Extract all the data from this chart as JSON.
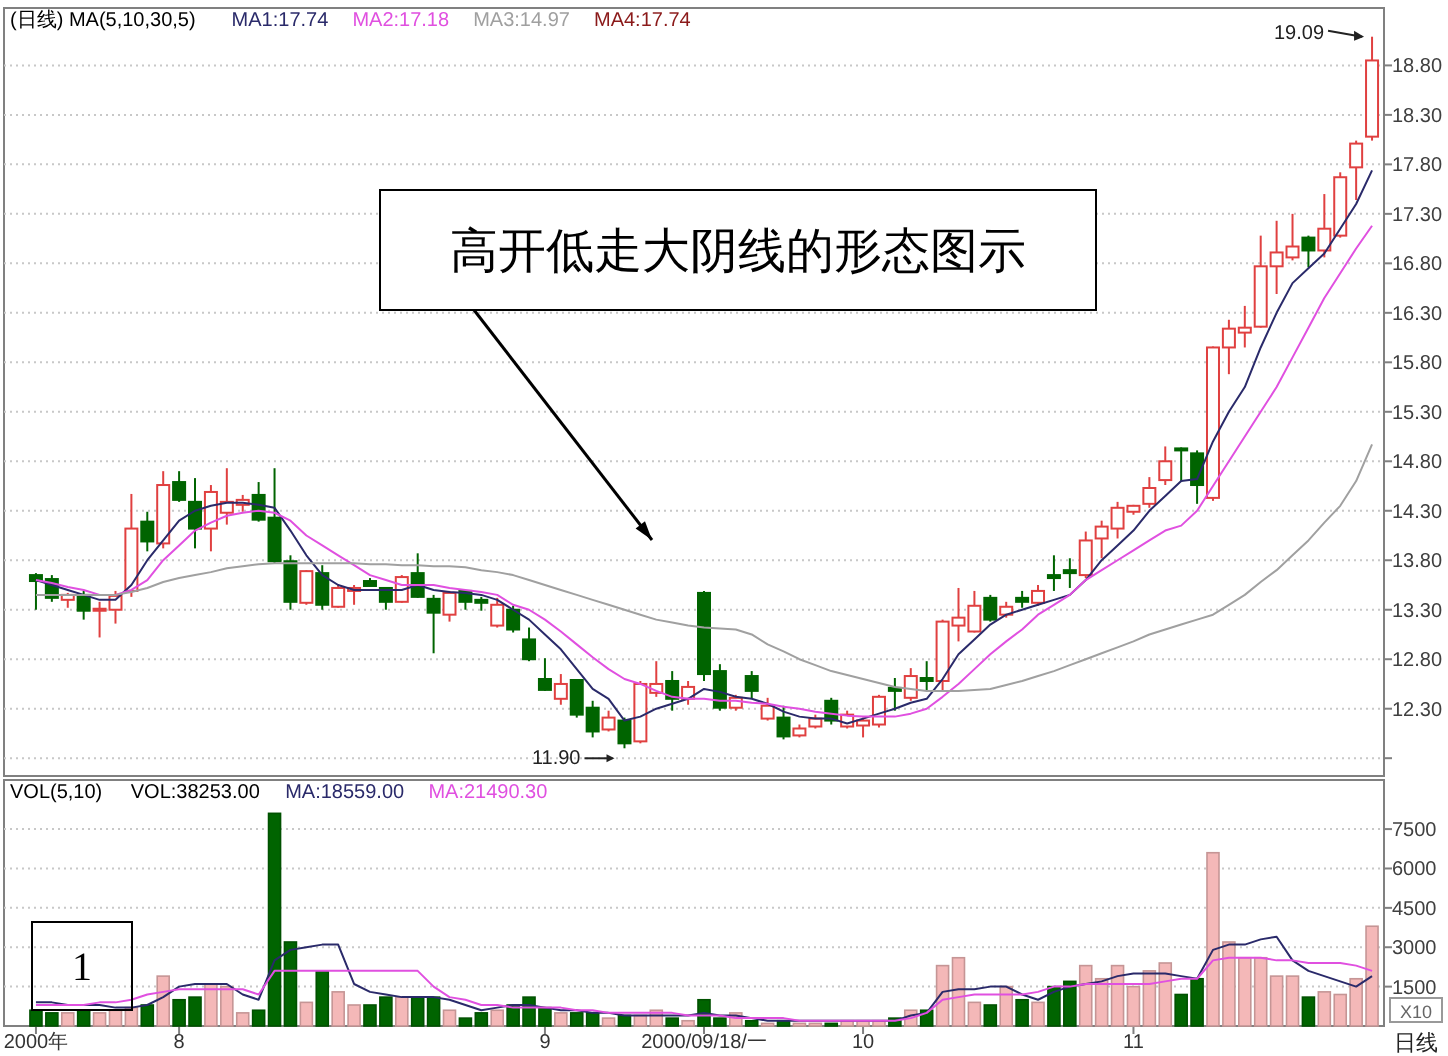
{
  "chart_data": [
    {
      "type": "candlestick",
      "title": "(日线) MA(5,10,30,5)",
      "categories": [
        null,
        null,
        null,
        null,
        null,
        null,
        null,
        null,
        null,
        null,
        null,
        null,
        null,
        null,
        null,
        null,
        null,
        null,
        null,
        null,
        null,
        null,
        null,
        null,
        null,
        null,
        null,
        null,
        null,
        null,
        null,
        null,
        null,
        null,
        null,
        null,
        null,
        null,
        null,
        null,
        null,
        null,
        null,
        null,
        null,
        null,
        null,
        null,
        null,
        null,
        null,
        null,
        null,
        null,
        null,
        null,
        null,
        null,
        null,
        null,
        null,
        null,
        null,
        null,
        null,
        null,
        null,
        null,
        null,
        null,
        null,
        null,
        null,
        null,
        null,
        null,
        null,
        null,
        null,
        null,
        null,
        null,
        null,
        null,
        null
      ],
      "tick_labels": "y",
      "grid": "y",
      "ylim": [
        11.62,
        19.38
      ],
      "yticks": [
        {
          "value": 11.8,
          "label": null
        },
        {
          "value": 12.3,
          "label": "12.30"
        },
        {
          "value": 12.8,
          "label": "12.80"
        },
        {
          "value": 13.3,
          "label": "13.30"
        },
        {
          "value": 13.8,
          "label": "13.80"
        },
        {
          "value": 14.3,
          "label": "14.30"
        },
        {
          "value": 14.8,
          "label": "14.80"
        },
        {
          "value": 15.3,
          "label": "15.30"
        },
        {
          "value": 15.8,
          "label": "15.80"
        },
        {
          "value": 16.3,
          "label": "16.30"
        },
        {
          "value": 16.8,
          "label": "16.80"
        },
        {
          "value": 17.3,
          "label": "17.30"
        },
        {
          "value": 17.8,
          "label": "17.80"
        },
        {
          "value": 18.3,
          "label": "18.30"
        },
        {
          "value": 18.8,
          "label": "18.80"
        }
      ],
      "ohlc": [
        [
          13.65,
          13.67,
          13.3,
          13.59
        ],
        [
          13.61,
          13.65,
          13.38,
          13.42
        ],
        [
          13.4,
          13.47,
          13.32,
          13.45
        ],
        [
          13.45,
          13.49,
          13.2,
          13.29
        ],
        [
          13.29,
          13.38,
          13.02,
          13.31
        ],
        [
          13.3,
          13.49,
          13.16,
          13.44
        ],
        [
          13.49,
          14.47,
          13.43,
          14.12
        ],
        [
          14.19,
          14.29,
          13.89,
          13.99
        ],
        [
          13.97,
          14.7,
          13.92,
          14.56
        ],
        [
          14.59,
          14.7,
          14.39,
          14.41
        ],
        [
          14.39,
          14.63,
          13.92,
          14.12
        ],
        [
          14.12,
          14.56,
          13.89,
          14.49
        ],
        [
          14.28,
          14.73,
          14.16,
          14.39
        ],
        [
          14.36,
          14.46,
          14.29,
          14.41
        ],
        [
          14.46,
          14.59,
          14.19,
          14.21
        ],
        [
          14.23,
          14.73,
          13.77,
          13.79
        ],
        [
          13.79,
          13.85,
          13.3,
          13.38
        ],
        [
          13.37,
          13.7,
          13.35,
          13.69
        ],
        [
          13.67,
          13.75,
          13.3,
          13.35
        ],
        [
          13.33,
          13.55,
          13.32,
          13.52
        ],
        [
          13.49,
          13.55,
          13.35,
          13.52
        ],
        [
          13.59,
          13.62,
          13.54,
          13.54
        ],
        [
          13.52,
          13.53,
          13.3,
          13.38
        ],
        [
          13.38,
          13.65,
          13.37,
          13.63
        ],
        [
          13.67,
          13.87,
          13.42,
          13.43
        ],
        [
          13.41,
          13.45,
          12.86,
          13.27
        ],
        [
          13.25,
          13.49,
          13.18,
          13.47
        ],
        [
          13.49,
          13.5,
          13.3,
          13.38
        ],
        [
          13.4,
          13.43,
          13.29,
          13.37
        ],
        [
          13.14,
          13.42,
          13.12,
          13.35
        ],
        [
          13.3,
          13.34,
          13.07,
          13.1
        ],
        [
          13.0,
          13.12,
          12.78,
          12.8
        ],
        [
          12.6,
          12.81,
          12.48,
          12.49
        ],
        [
          12.4,
          12.65,
          12.34,
          12.55
        ],
        [
          12.59,
          12.6,
          12.21,
          12.24
        ],
        [
          12.31,
          12.38,
          12.01,
          12.07
        ],
        [
          12.09,
          12.28,
          12.07,
          12.21
        ],
        [
          12.18,
          12.21,
          11.9,
          11.95
        ],
        [
          11.97,
          12.58,
          11.95,
          12.55
        ],
        [
          12.46,
          12.78,
          12.42,
          12.55
        ],
        [
          12.58,
          12.68,
          12.28,
          12.4
        ],
        [
          12.4,
          12.58,
          12.34,
          12.52
        ],
        [
          13.47,
          13.49,
          12.58,
          12.65
        ],
        [
          12.68,
          12.75,
          12.28,
          12.31
        ],
        [
          12.31,
          12.44,
          12.28,
          12.41
        ],
        [
          12.63,
          12.68,
          12.4,
          12.48
        ],
        [
          12.2,
          12.41,
          12.18,
          12.33
        ],
        [
          12.21,
          12.33,
          11.99,
          12.02
        ],
        [
          12.03,
          12.14,
          12.01,
          12.1
        ],
        [
          12.12,
          12.24,
          12.1,
          12.2
        ],
        [
          12.38,
          12.41,
          12.14,
          12.18
        ],
        [
          12.12,
          12.28,
          12.1,
          12.24
        ],
        [
          12.13,
          12.21,
          12.01,
          12.18
        ],
        [
          12.14,
          12.44,
          12.11,
          12.42
        ],
        [
          12.51,
          12.61,
          12.28,
          12.48
        ],
        [
          12.41,
          12.71,
          12.38,
          12.63
        ],
        [
          12.61,
          12.78,
          12.48,
          12.58
        ],
        [
          12.58,
          13.2,
          12.48,
          13.18
        ],
        [
          13.14,
          13.52,
          12.98,
          13.22
        ],
        [
          13.08,
          13.49,
          13.07,
          13.34
        ],
        [
          13.42,
          13.45,
          13.18,
          13.2
        ],
        [
          13.25,
          13.38,
          13.22,
          13.33
        ],
        [
          13.42,
          13.49,
          13.32,
          13.38
        ],
        [
          13.37,
          13.55,
          13.34,
          13.49
        ],
        [
          13.65,
          13.85,
          13.49,
          13.62
        ],
        [
          13.7,
          13.82,
          13.52,
          13.67
        ],
        [
          13.65,
          14.09,
          13.62,
          14.0
        ],
        [
          14.02,
          14.2,
          13.82,
          14.14
        ],
        [
          14.12,
          14.39,
          14.02,
          14.33
        ],
        [
          14.29,
          14.36,
          14.26,
          14.35
        ],
        [
          14.37,
          14.64,
          14.33,
          14.53
        ],
        [
          14.61,
          14.95,
          14.56,
          14.8
        ],
        [
          14.93,
          14.94,
          14.59,
          14.91
        ],
        [
          14.88,
          14.91,
          14.37,
          14.56
        ],
        [
          14.43,
          15.96,
          14.4,
          15.95
        ],
        [
          15.95,
          16.23,
          15.68,
          16.14
        ],
        [
          16.1,
          16.37,
          15.95,
          16.15
        ],
        [
          16.16,
          17.08,
          16.15,
          16.77
        ],
        [
          16.77,
          17.23,
          16.49,
          16.91
        ],
        [
          16.86,
          17.3,
          16.83,
          16.97
        ],
        [
          17.06,
          17.08,
          16.76,
          16.93
        ],
        [
          16.93,
          17.5,
          16.86,
          17.15
        ],
        [
          17.08,
          17.72,
          17.06,
          17.67
        ],
        [
          17.77,
          18.04,
          17.44,
          18.01
        ],
        [
          18.08,
          19.09,
          18.04,
          18.85
        ]
      ],
      "colors": [
        "#006400",
        "#006400",
        "#e04040",
        "#006400",
        "#e04040",
        "#e04040",
        "#e04040",
        "#006400",
        "#e04040",
        "#006400",
        "#006400",
        "#e04040",
        "#e04040",
        "#e04040",
        "#006400",
        "#006400",
        "#006400",
        "#e04040",
        "#006400",
        "#e04040",
        "#e04040",
        "#006400",
        "#006400",
        "#e04040",
        "#006400",
        "#006400",
        "#e04040",
        "#006400",
        "#006400",
        "#e04040",
        "#006400",
        "#006400",
        "#006400",
        "#e04040",
        "#006400",
        "#006400",
        "#e04040",
        "#006400",
        "#e04040",
        "#e04040",
        "#006400",
        "#e04040",
        "#006400",
        "#006400",
        "#e04040",
        "#006400",
        "#e04040",
        "#006400",
        "#e04040",
        "#e04040",
        "#006400",
        "#e04040",
        "#e04040",
        "#e04040",
        "#006400",
        "#e04040",
        "#006400",
        "#e04040",
        "#e04040",
        "#e04040",
        "#006400",
        "#e04040",
        "#006400",
        "#e04040",
        "#006400",
        "#006400",
        "#e04040",
        "#e04040",
        "#e04040",
        "#e04040",
        "#e04040",
        "#e04040",
        "#006400",
        "#006400",
        "#e04040",
        "#e04040",
        "#e04040",
        "#e04040",
        "#e04040",
        "#e04040",
        "#006400",
        "#e04040",
        "#e04040",
        "#e04040",
        "#e04040"
      ],
      "series": [
        {
          "name": "MA1:17.74",
          "type": "line",
          "color": "#2a2a6a",
          "values": [
            13.6,
            13.55,
            13.5,
            13.45,
            13.4,
            13.4,
            13.55,
            13.8,
            14.0,
            14.2,
            14.3,
            14.35,
            14.38,
            14.38,
            14.36,
            14.33,
            14.1,
            13.85,
            13.65,
            13.55,
            13.5,
            13.5,
            13.5,
            13.5,
            13.55,
            13.5,
            13.48,
            13.47,
            13.45,
            13.4,
            13.3,
            13.2,
            13.05,
            12.9,
            12.7,
            12.5,
            12.4,
            12.18,
            12.22,
            12.3,
            12.35,
            12.4,
            12.5,
            12.47,
            12.42,
            12.4,
            12.35,
            12.27,
            12.22,
            12.2,
            12.2,
            12.15,
            12.2,
            12.25,
            12.3,
            12.36,
            12.4,
            12.6,
            12.85,
            13.0,
            13.15,
            13.25,
            13.3,
            13.35,
            13.4,
            13.45,
            13.6,
            13.8,
            13.95,
            14.1,
            14.3,
            14.45,
            14.6,
            14.62,
            15.0,
            15.3,
            15.55,
            15.95,
            16.3,
            16.6,
            16.75,
            16.9,
            17.15,
            17.4,
            17.74
          ]
        },
        {
          "name": "MA2:17.18",
          "type": "line",
          "color": "#e050e0",
          "values": [
            13.6,
            13.57,
            13.53,
            13.5,
            13.45,
            13.45,
            13.5,
            13.6,
            13.8,
            13.95,
            14.1,
            14.18,
            14.25,
            14.28,
            14.3,
            14.28,
            14.2,
            14.05,
            13.95,
            13.85,
            13.75,
            13.65,
            13.6,
            13.55,
            13.55,
            13.55,
            13.52,
            13.5,
            13.48,
            13.45,
            13.35,
            13.3,
            13.2,
            13.08,
            12.95,
            12.82,
            12.7,
            12.6,
            12.55,
            12.48,
            12.42,
            12.4,
            12.4,
            12.38,
            12.38,
            12.36,
            12.35,
            12.32,
            12.3,
            12.27,
            12.25,
            12.23,
            12.22,
            12.22,
            12.22,
            12.25,
            12.3,
            12.42,
            12.55,
            12.7,
            12.85,
            12.98,
            13.1,
            13.25,
            13.35,
            13.45,
            13.6,
            13.7,
            13.8,
            13.9,
            14.0,
            14.1,
            14.15,
            14.3,
            14.55,
            14.8,
            15.05,
            15.3,
            15.55,
            15.85,
            16.15,
            16.45,
            16.7,
            16.95,
            17.18
          ]
        },
        {
          "name": "MA3:14.97",
          "type": "line",
          "color": "#a0a0a0",
          "values": [
            13.45,
            13.45,
            13.45,
            13.45,
            13.45,
            13.45,
            13.48,
            13.52,
            13.58,
            13.62,
            13.65,
            13.68,
            13.72,
            13.74,
            13.76,
            13.77,
            13.77,
            13.77,
            13.77,
            13.77,
            13.77,
            13.76,
            13.76,
            13.75,
            13.75,
            13.74,
            13.74,
            13.73,
            13.7,
            13.68,
            13.65,
            13.6,
            13.55,
            13.5,
            13.45,
            13.4,
            13.35,
            13.3,
            13.25,
            13.2,
            13.17,
            13.14,
            13.12,
            13.11,
            13.1,
            13.05,
            12.95,
            12.88,
            12.8,
            12.74,
            12.68,
            12.64,
            12.6,
            12.56,
            12.52,
            12.5,
            12.48,
            12.48,
            12.48,
            12.49,
            12.5,
            12.54,
            12.58,
            12.63,
            12.68,
            12.74,
            12.8,
            12.86,
            12.92,
            12.98,
            13.05,
            13.1,
            13.15,
            13.2,
            13.25,
            13.35,
            13.45,
            13.58,
            13.7,
            13.85,
            14.0,
            14.18,
            14.35,
            14.6,
            14.97
          ]
        }
      ],
      "annotations": [
        "MA4:17.74",
        "高开低走大阴线的形态图示",
        "11.90",
        "19.09"
      ]
    },
    {
      "type": "bar",
      "title": "VOL(5,10)",
      "xlabel": "日线",
      "ylabel": "X10",
      "categories": [
        "2000年",
        null,
        null,
        null,
        null,
        null,
        null,
        null,
        null,
        "8",
        null,
        null,
        null,
        null,
        null,
        null,
        null,
        null,
        null,
        null,
        null,
        null,
        null,
        null,
        null,
        null,
        null,
        null,
        null,
        null,
        null,
        null,
        "9",
        null,
        null,
        null,
        null,
        null,
        null,
        null,
        null,
        null,
        "2000/09/18/一",
        null,
        null,
        null,
        null,
        null,
        null,
        null,
        null,
        null,
        "10",
        null,
        null,
        null,
        null,
        null,
        null,
        null,
        null,
        null,
        null,
        null,
        null,
        null,
        null,
        null,
        null,
        "11",
        null,
        null,
        null,
        null,
        null,
        null,
        null,
        null,
        null,
        null,
        null,
        null,
        null,
        null,
        null
      ],
      "grid": "y",
      "ylim": [
        0,
        9370
      ],
      "yticks": [
        1500,
        3000,
        4500,
        6000,
        7500
      ],
      "series": [
        {
          "name": "VOL:38253.00",
          "type": "bar",
          "values": [
            600,
            500,
            500,
            600,
            500,
            600,
            700,
            800,
            1900,
            1000,
            1100,
            1600,
            1500,
            500,
            600,
            8100,
            3200,
            900,
            2100,
            1300,
            800,
            800,
            1100,
            1100,
            1100,
            1100,
            600,
            300,
            500,
            600,
            800,
            1100,
            700,
            500,
            500,
            500,
            300,
            400,
            400,
            600,
            300,
            200,
            1000,
            300,
            500,
            200,
            100,
            200,
            100,
            100,
            100,
            200,
            200,
            200,
            300,
            600,
            600,
            2300,
            2600,
            900,
            800,
            1500,
            1000,
            900,
            1500,
            1700,
            2300,
            1800,
            2300,
            1500,
            2100,
            2400,
            1200,
            1800,
            6600,
            3200,
            2600,
            2600,
            1900,
            1900,
            1100,
            1300,
            1200,
            1800,
            3800
          ],
          "colors": [
            "#006400",
            "#006400",
            "#f4b8b8",
            "#006400",
            "#f4b8b8",
            "#f4b8b8",
            "#f4b8b8",
            "#006400",
            "#f4b8b8",
            "#006400",
            "#006400",
            "#f4b8b8",
            "#f4b8b8",
            "#f4b8b8",
            "#006400",
            "#006400",
            "#006400",
            "#f4b8b8",
            "#006400",
            "#f4b8b8",
            "#f4b8b8",
            "#006400",
            "#006400",
            "#f4b8b8",
            "#006400",
            "#006400",
            "#f4b8b8",
            "#006400",
            "#006400",
            "#f4b8b8",
            "#006400",
            "#006400",
            "#006400",
            "#f4b8b8",
            "#006400",
            "#006400",
            "#f4b8b8",
            "#006400",
            "#f4b8b8",
            "#f4b8b8",
            "#006400",
            "#f4b8b8",
            "#006400",
            "#006400",
            "#f4b8b8",
            "#006400",
            "#f4b8b8",
            "#006400",
            "#f4b8b8",
            "#f4b8b8",
            "#006400",
            "#f4b8b8",
            "#f4b8b8",
            "#f4b8b8",
            "#006400",
            "#f4b8b8",
            "#006400",
            "#f4b8b8",
            "#f4b8b8",
            "#f4b8b8",
            "#006400",
            "#f4b8b8",
            "#006400",
            "#f4b8b8",
            "#006400",
            "#006400",
            "#f4b8b8",
            "#f4b8b8",
            "#f4b8b8",
            "#f4b8b8",
            "#f4b8b8",
            "#f4b8b8",
            "#006400",
            "#006400",
            "#f4b8b8",
            "#f4b8b8",
            "#f4b8b8",
            "#f4b8b8",
            "#f4b8b8",
            "#f4b8b8",
            "#006400",
            "#f4b8b8",
            "#f4b8b8",
            "#f4b8b8",
            "#f4b8b8"
          ]
        },
        {
          "name": "MA:18559.00",
          "type": "line",
          "color": "#2a2a6a",
          "values": [
            900,
            900,
            800,
            800,
            800,
            700,
            700,
            800,
            1100,
            1500,
            1600,
            1600,
            1600,
            1200,
            1000,
            2500,
            2900,
            3000,
            3100,
            3100,
            1600,
            1300,
            1200,
            1100,
            1100,
            1100,
            1000,
            800,
            600,
            700,
            800,
            800,
            700,
            600,
            600,
            500,
            500,
            400,
            400,
            400,
            400,
            400,
            500,
            400,
            400,
            300,
            200,
            200,
            200,
            200,
            200,
            200,
            200,
            200,
            200,
            400,
            500,
            1300,
            1400,
            1400,
            1500,
            1500,
            1200,
            1000,
            1300,
            1500,
            1600,
            1700,
            1900,
            2000,
            2000,
            2000,
            1900,
            1800,
            2900,
            3100,
            3100,
            3300,
            3400,
            2500,
            2100,
            1900,
            1700,
            1500,
            1900
          ]
        },
        {
          "name": "MA:21490.30",
          "type": "line",
          "color": "#e050e0",
          "values": [
            800,
            800,
            800,
            800,
            900,
            900,
            1000,
            1200,
            1300,
            1400,
            1400,
            1400,
            1400,
            1400,
            1200,
            2100,
            2100,
            2100,
            2100,
            2100,
            2100,
            2100,
            2100,
            2100,
            2100,
            1500,
            1100,
            1000,
            800,
            800,
            700,
            700,
            700,
            700,
            600,
            600,
            500,
            500,
            500,
            500,
            500,
            400,
            400,
            400,
            300,
            300,
            300,
            300,
            200,
            200,
            200,
            200,
            200,
            200,
            200,
            300,
            500,
            1000,
            1100,
            1200,
            1200,
            1200,
            1200,
            1300,
            1500,
            1500,
            1600,
            1600,
            1600,
            1600,
            1600,
            1700,
            1800,
            1800,
            2500,
            2600,
            2600,
            2600,
            2500,
            2500,
            2400,
            2400,
            2400,
            2300,
            2100
          ]
        }
      ],
      "annotations": [
        "1"
      ]
    }
  ]
}
